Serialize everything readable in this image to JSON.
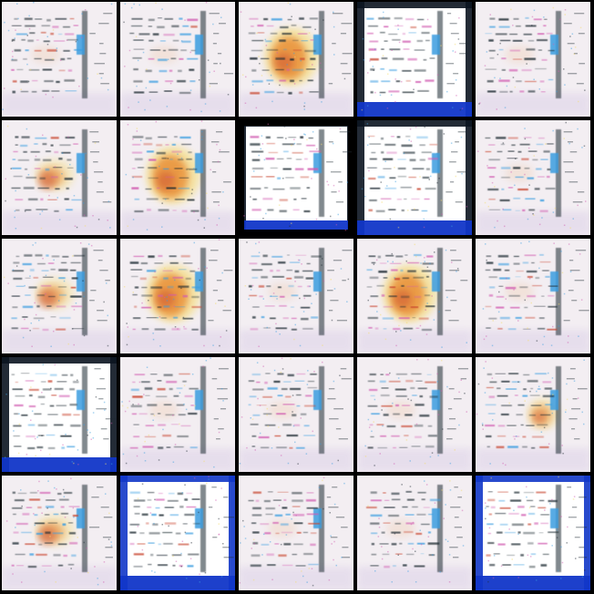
{
  "grid": {
    "rows": 5,
    "columns": 5,
    "tiles": [
      {
        "variant": "light"
      },
      {
        "variant": "light"
      },
      {
        "variant": "orange"
      },
      {
        "variant": "framed-dark"
      },
      {
        "variant": "light"
      },
      {
        "variant": "light-orange"
      },
      {
        "variant": "orange"
      },
      {
        "variant": "framed-black"
      },
      {
        "variant": "framed-dark"
      },
      {
        "variant": "light"
      },
      {
        "variant": "light-orange"
      },
      {
        "variant": "orange"
      },
      {
        "variant": "light"
      },
      {
        "variant": "orange"
      },
      {
        "variant": "light"
      },
      {
        "variant": "framed-dark"
      },
      {
        "variant": "light"
      },
      {
        "variant": "light"
      },
      {
        "variant": "light"
      },
      {
        "variant": "orange-small"
      },
      {
        "variant": "light-orange"
      },
      {
        "variant": "framed-blue"
      },
      {
        "variant": "light"
      },
      {
        "variant": "light"
      },
      {
        "variant": "framed-blue"
      }
    ]
  },
  "colors": {
    "background": "#000000",
    "paper": "#f3eef2",
    "paper_bright": "#ffffff",
    "haze": "#ddd2e8",
    "orange": "#e8892e",
    "red": "#c8452f",
    "yellow": "#f5dc6a",
    "blue": "#3a9de0",
    "deep_blue": "#1136c8",
    "ink": "#1f2a33",
    "magenta": "#d05ab0",
    "frame_dark": "#0b1420"
  }
}
